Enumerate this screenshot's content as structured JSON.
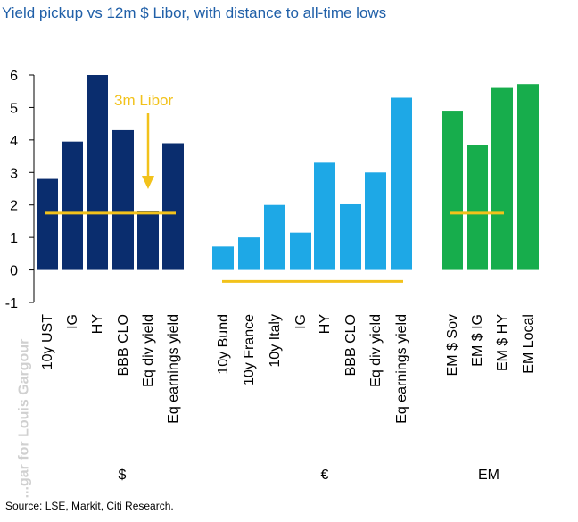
{
  "title": "Yield pickup vs 12m $ Libor, with distance to all-time lows",
  "source": "Source: LSE, Markit, Citi Research.",
  "watermark": "...gar for Louis Gargour",
  "annotation": "3m Libor",
  "colors": {
    "usd": "#0a2d6e",
    "eur": "#1ea8e6",
    "em": "#17ad4c",
    "libor": "#f2c21b",
    "annotation_text": "#f2c21b",
    "title": "#1f5fa8"
  },
  "chart_data": {
    "type": "bar",
    "ylim": [
      -1,
      6
    ],
    "yticks": [
      -1,
      0,
      1,
      2,
      3,
      4,
      5,
      6
    ],
    "grid": false,
    "groups": [
      {
        "name": "$",
        "categories": [
          "10y UST",
          "IG",
          "HY",
          "BBB CLO",
          "Eq div yield",
          "Eq earnings yield"
        ],
        "values": [
          2.8,
          3.95,
          6.0,
          4.3,
          1.8,
          3.9
        ],
        "all_time_low_line": 1.75
      },
      {
        "name": "€",
        "categories": [
          "10y Bund",
          "10y France",
          "10y Italy",
          "IG",
          "HY",
          "BBB CLO",
          "Eq div yield",
          "Eq earnings yield"
        ],
        "values": [
          0.72,
          1.0,
          2.0,
          1.15,
          3.3,
          2.02,
          3.0,
          5.3
        ],
        "all_time_low_line": -0.35
      },
      {
        "name": "EM",
        "categories": [
          "EM $ Sov",
          "EM $ IG",
          "EM $ HY",
          "EM Local"
        ],
        "values": [
          4.9,
          3.85,
          5.6,
          5.72
        ],
        "all_time_low_line": 1.75
      }
    ]
  }
}
